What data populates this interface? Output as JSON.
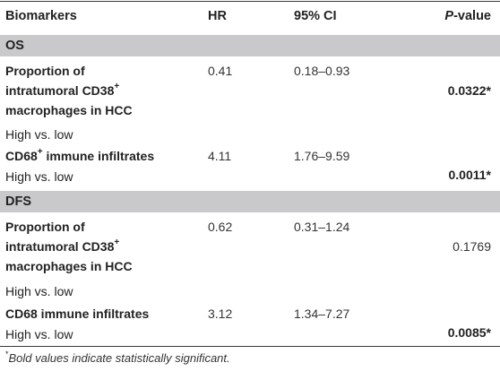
{
  "headers": {
    "biomarkers": "Biomarkers",
    "hr": "HR",
    "ci": "95% CI",
    "p_italic": "P",
    "p_rest": "-value"
  },
  "sections": [
    {
      "label": "OS",
      "rows": [
        {
          "line1": "Proportion of",
          "line2": "intratumoral CD38",
          "line2_sup": "+",
          "line3": "macrophages in HCC",
          "sub": "High vs. low",
          "hr": "0.41",
          "ci": "0.18–0.93",
          "p": "0.0322*"
        },
        {
          "line1": "CD68",
          "line1_sup": "+",
          "line1_rest": " immune infiltrates",
          "sub": "High vs. low",
          "hr": "4.11",
          "ci": "1.76–9.59",
          "p": "0.0011*"
        }
      ]
    },
    {
      "label": "DFS",
      "rows": [
        {
          "line1": "Proportion of",
          "line2": "intratumoral CD38",
          "line2_sup": "+",
          "line3": "macrophages in HCC",
          "sub": "High vs. low",
          "hr": "0.62",
          "ci": "0.31–1.24",
          "p": "0.1769"
        },
        {
          "line1": "CD68 immune infiltrates",
          "sub": "High vs. low",
          "hr": "3.12",
          "ci": "1.34–7.27",
          "p": "0.0085*"
        }
      ]
    }
  ],
  "footnote": {
    "marker": "*",
    "text": "Bold values indicate statistically significant."
  }
}
